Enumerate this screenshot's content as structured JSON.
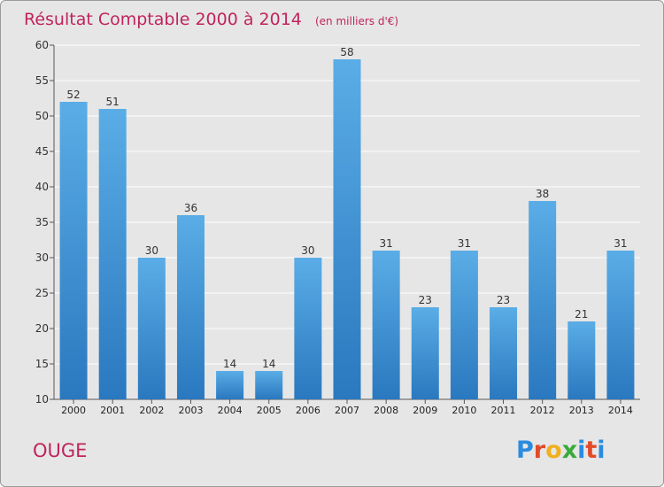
{
  "chart_data": {
    "type": "bar",
    "title": "Résultat Comptable 2000 à 2014",
    "subtitle": "(en milliers d'€)",
    "categories": [
      "2000",
      "2001",
      "2002",
      "2003",
      "2004",
      "2005",
      "2006",
      "2007",
      "2008",
      "2009",
      "2010",
      "2011",
      "2012",
      "2013",
      "2014"
    ],
    "values": [
      52,
      51,
      30,
      36,
      14,
      14,
      30,
      58,
      31,
      23,
      31,
      23,
      38,
      21,
      31
    ],
    "ylim": [
      10,
      60
    ],
    "yticks": [
      10,
      15,
      20,
      25,
      30,
      35,
      40,
      45,
      50,
      55,
      60
    ],
    "xlabel": "",
    "ylabel": "",
    "grid": true,
    "bar_color": "#3a8fd6",
    "bar_color_light": "#5aade6",
    "bar_color_dark": "#2a78bf"
  },
  "footer": {
    "city": "OUGE",
    "logo_letters": [
      "P",
      "r",
      "o",
      "x",
      "i",
      "t",
      "i"
    ],
    "logo_colors": [
      "#2a8be0",
      "#e24a2a",
      "#f0b020",
      "#3aaa3a",
      "#2a8be0",
      "#e24a2a",
      "#2a8be0"
    ]
  },
  "colors": {
    "title": "#c0245c",
    "background": "#e6e6e6"
  }
}
